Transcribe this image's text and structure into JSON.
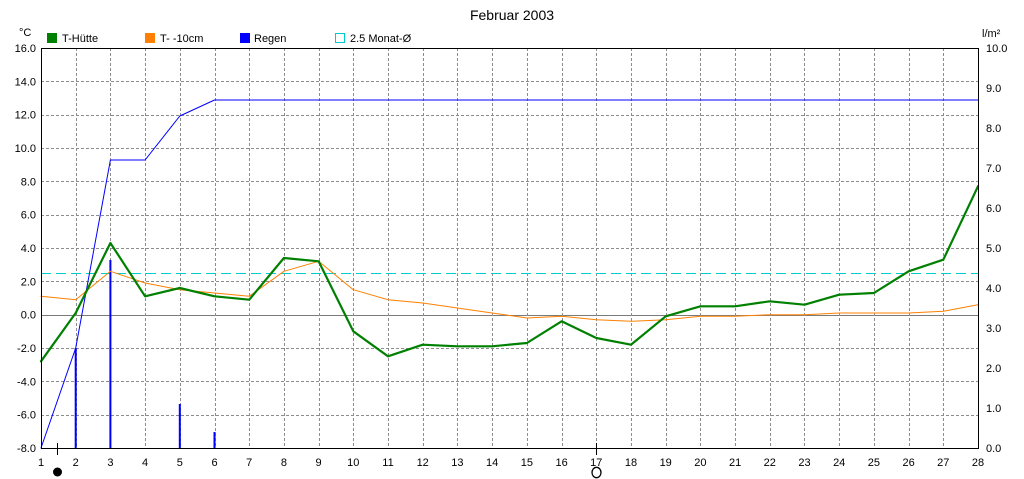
{
  "chart_data": {
    "type": "line",
    "title": "Februar 2003",
    "ylabel_left": "°C",
    "ylabel_right": "l/m²",
    "x": [
      1,
      2,
      3,
      4,
      5,
      6,
      7,
      8,
      9,
      10,
      11,
      12,
      13,
      14,
      15,
      16,
      17,
      18,
      19,
      20,
      21,
      22,
      23,
      24,
      25,
      26,
      27,
      28
    ],
    "x_ticks": [
      "1",
      "2",
      "3",
      "4",
      "5",
      "6",
      "7",
      "8",
      "9",
      "10",
      "11",
      "12",
      "13",
      "14",
      "15",
      "16",
      "17",
      "18",
      "19",
      "20",
      "21",
      "22",
      "23",
      "24",
      "25",
      "26",
      "27",
      "28"
    ],
    "xlim": [
      1,
      28
    ],
    "ylim_left": [
      -8,
      16
    ],
    "ylim_right": [
      0,
      10
    ],
    "y_ticks_left": [
      "16.0",
      "14.0",
      "12.0",
      "10.0",
      "8.0",
      "6.0",
      "4.0",
      "2.0",
      "0.0",
      "-2.0",
      "-4.0",
      "-6.0",
      "-8.0"
    ],
    "y_ticks_right": [
      "10.0",
      "9.0",
      "8.0",
      "7.0",
      "6.0",
      "5.0",
      "4.0",
      "3.0",
      "2.0",
      "1.0",
      "0.0"
    ],
    "grid": true,
    "legend_position": "top-left",
    "series": [
      {
        "name": "T-Hütte",
        "type": "line",
        "y_axis": "left",
        "color": "#008000",
        "values": [
          -2.8,
          0.1,
          4.3,
          1.1,
          1.6,
          1.1,
          0.9,
          3.4,
          3.2,
          -1.0,
          -2.5,
          -1.8,
          -1.9,
          -1.9,
          -1.7,
          -0.4,
          -1.4,
          -1.8,
          -0.1,
          0.5,
          0.5,
          0.8,
          0.6,
          1.2,
          1.3,
          2.6,
          3.3,
          7.7
        ]
      },
      {
        "name": "T- -10cm",
        "type": "line",
        "y_axis": "left",
        "color": "#ff8000",
        "values": [
          1.1,
          0.9,
          2.6,
          1.9,
          1.5,
          1.3,
          1.1,
          2.6,
          3.2,
          1.5,
          0.9,
          0.7,
          0.4,
          0.1,
          -0.2,
          -0.1,
          -0.3,
          -0.4,
          -0.3,
          -0.1,
          -0.1,
          0.0,
          0.0,
          0.1,
          0.1,
          0.1,
          0.2,
          0.6
        ]
      },
      {
        "name": "Regen",
        "type": "bar",
        "y_axis": "right",
        "color": "#0000ff",
        "values": [
          0,
          2.5,
          4.7,
          0,
          1.1,
          0.4,
          0,
          0,
          0,
          0,
          0,
          0,
          0,
          0,
          0,
          0,
          0,
          0,
          0,
          0,
          0,
          0,
          0,
          0,
          0,
          0,
          0,
          0
        ],
        "cumulative": [
          0,
          2.5,
          7.2,
          7.2,
          8.3,
          8.7,
          8.7,
          8.7,
          8.7,
          8.7,
          8.7,
          8.7,
          8.7,
          8.7,
          8.7,
          8.7,
          8.7,
          8.7,
          8.7,
          8.7,
          8.7,
          8.7,
          8.7,
          8.7,
          8.7,
          8.7,
          8.7,
          8.7
        ]
      },
      {
        "name": "2.5 Monat-Ø",
        "type": "reference-line",
        "y_axis": "left",
        "color": "#00cccc",
        "value": 2.5
      }
    ],
    "moon_phases": [
      {
        "icon": "new-moon-icon",
        "day": 1.45
      },
      {
        "icon": "full-moon-icon",
        "day": 17.0
      }
    ]
  }
}
